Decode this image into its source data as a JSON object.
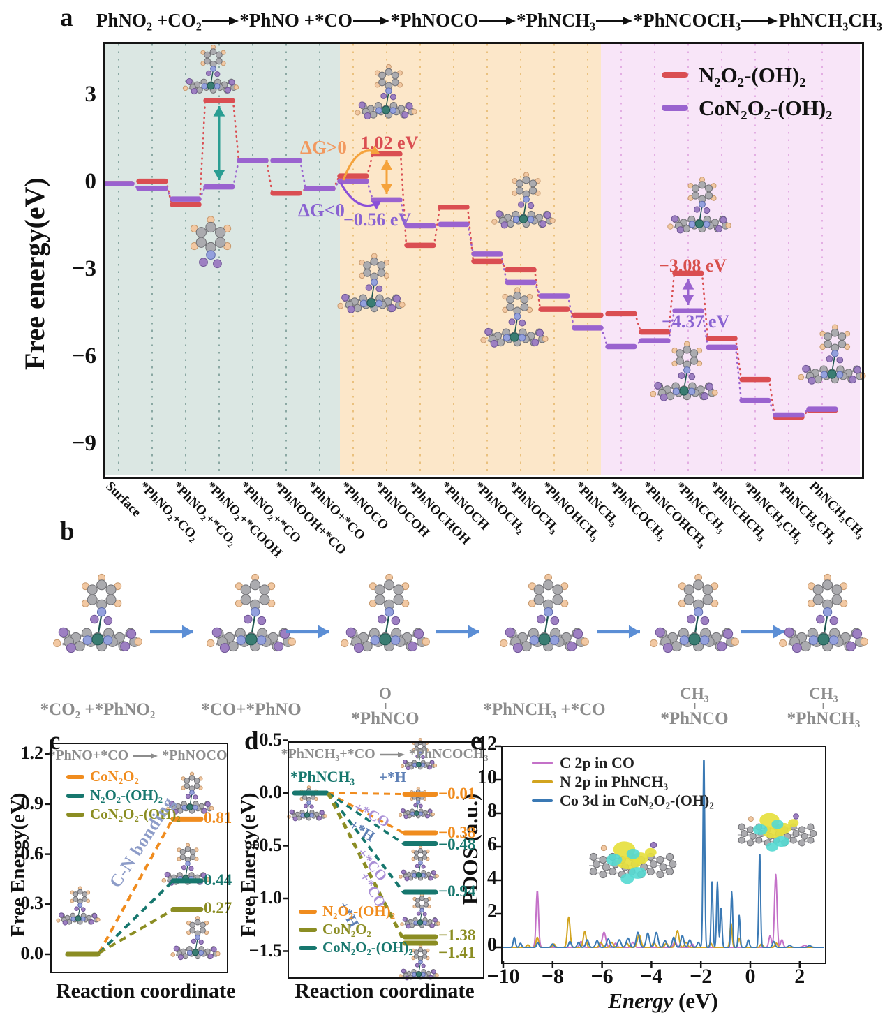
{
  "panels": {
    "a": "a",
    "b": "b",
    "c": "c",
    "d": "d",
    "e": "e"
  },
  "header": {
    "segments": [
      "PhNO₂ +CO₂",
      "*PhNO +*CO",
      "*PhNOCO",
      "*PhNCH₃",
      "*PhNCOCH₃",
      "PhNCH₃CH₃"
    ]
  },
  "panel_a": {
    "ylabel": "Free energy(eV)",
    "legend": [
      {
        "label": "N₂O₂-(OH)₂",
        "color": "#da4e52"
      },
      {
        "label": "CoN₂O₂-(OH)₂",
        "color": "#9a63cf"
      }
    ],
    "annotations": {
      "dg_pos": {
        "text": "ΔG>0",
        "color": "#f2995f"
      },
      "dg_neg": {
        "text": "ΔG<0",
        "color": "#8a63d2"
      },
      "red_peak1": {
        "text": "1.02 eV",
        "color": "#da4e52"
      },
      "purple_val1": {
        "text": "−0.56 eV",
        "color": "#8a63d2"
      },
      "red_peak2": {
        "text": "−3.08 eV",
        "color": "#d8504d"
      },
      "purple_val2": {
        "text": "−4.37 eV",
        "color": "#8a63d2"
      }
    }
  },
  "panel_b": {
    "labels": [
      {
        "main": "*CO₂ +*PhNO₂"
      },
      {
        "main": "*CO+*PhNO"
      },
      {
        "top": "O",
        "main": "*PhNCO"
      },
      {
        "main": "*PhNCH₃ +*CO"
      },
      {
        "top": "CH₃",
        "main": "*PhNCO"
      },
      {
        "top": "CH₃",
        "main": "*PhNCH₃"
      }
    ]
  },
  "panel_c": {
    "title_from": "*PhNO+*CO",
    "title_to": "*PhNOCO",
    "ylabel": "Free Energy(eV)",
    "xlabel": "Reaction coordinate",
    "annotation": "C-N bonding"
  },
  "panel_d": {
    "title_from": "*PhNCH₃+*CO",
    "title_to": "*PhNCOCH₃",
    "ylabel": "Free Energy(eV)",
    "xlabel": "Reaction coordinate",
    "start_label": "*PhNCH₃"
  },
  "panel_e": {
    "ylabel": "PDOS (a.u.)",
    "xlabel_italic": "Energy",
    "xlabel_rest": "(eV)"
  },
  "chart_data": [
    {
      "id": "a",
      "type": "line",
      "subtype": "energy-level-diagram",
      "ylabel": "Free energy(eV)",
      "ylim": [
        -10,
        4.9
      ],
      "yticks": [
        3,
        0,
        -3,
        -6,
        -9
      ],
      "categories": [
        "Surface",
        "*PhNO₂+CO₂",
        "*PhNO₂+*CO₂",
        "*PhNO₂+*COOH",
        "*PhNO₂+*CO",
        "*PhNOOH+*CO",
        "*PhNO+*CO",
        "*PhNOCO",
        "*PhNOCOH",
        "*PhNOCHOH",
        "*PhNOCH",
        "*PhNOCH₂",
        "*PhNOCH₃",
        "*PhNOHCH₃",
        "*PhNCH₃",
        "*PhNCOCH₃",
        "*PhNCOHCH₃",
        "*PhNCCH₃",
        "*PhNCHCH₃",
        "*PhNCH₂CH₃",
        "*PhNCH₃CH₃",
        "PhNCH₃CH₃"
      ],
      "series": [
        {
          "name": "N₂O₂-(OH)₂",
          "color": "#da4e52",
          "values": [
            0.0,
            0.08,
            -0.72,
            2.85,
            0.79,
            -0.33,
            -0.17,
            0.26,
            1.02,
            -2.12,
            -0.81,
            -2.67,
            -2.96,
            -4.32,
            -4.52,
            -4.47,
            -5.1,
            -3.08,
            -5.32,
            -6.73,
            -8.02,
            -7.78
          ]
        },
        {
          "name": "CoN₂O₂-(OH)₂",
          "color": "#9a63cf",
          "values": [
            0.0,
            -0.17,
            -0.53,
            -0.11,
            0.79,
            0.79,
            -0.17,
            0.08,
            -0.56,
            -1.45,
            -1.4,
            -2.42,
            -3.39,
            -3.86,
            -4.96,
            -5.6,
            -5.4,
            -4.37,
            -5.62,
            -7.45,
            -7.95,
            -7.75
          ]
        }
      ],
      "stage_bands": [
        {
          "range": "Surface → *PhNO+*CO",
          "color": "#dbe7e3"
        },
        {
          "range": "*PhNOCO → *PhNCH₃",
          "color": "#fce7c9"
        },
        {
          "range": "*PhNCOCH₃ → PhNCH₃CH₃",
          "color": "#f8e5f8"
        }
      ],
      "annotated_values": {
        "step_up_eV": 1.02,
        "step_down_eV": -0.56,
        "late_red_eV": -3.08,
        "late_purple_eV": -4.37
      }
    },
    {
      "id": "c",
      "type": "line",
      "subtype": "reaction-barrier",
      "title": "*PhNO+*CO → *PhNOCO",
      "xlabel": "Reaction coordinate",
      "ylabel": "Free Energy(eV)",
      "yticks": [
        0.0,
        0.3,
        0.6,
        0.9,
        1.2
      ],
      "ylim": [
        -0.12,
        1.3
      ],
      "series": [
        {
          "name": "CoN₂O₂",
          "color": "#f08c1e",
          "start": 0.0,
          "end": 0.81
        },
        {
          "name": "N₂O₂-(OH)₂",
          "color": "#17776e",
          "start": 0.0,
          "end": 0.44
        },
        {
          "name": "CoN₂O₂-(OH)₂",
          "color": "#8b8d23",
          "start": 0.0,
          "end": 0.27
        }
      ],
      "annotation": "C-N bonding"
    },
    {
      "id": "d",
      "type": "line",
      "subtype": "reaction-barrier",
      "title": "*PhNCH₃+*CO → *PhNCOCH₃",
      "xlabel": "Reaction coordinate",
      "ylabel": "Free Energy(eV)",
      "yticks": [
        0.5,
        0.0,
        -0.5,
        -1.0,
        -1.5
      ],
      "ylim": [
        -1.75,
        0.5
      ],
      "start_label": "*PhNCH₃",
      "start_value": 0.0,
      "paths": [
        {
          "catalyst": "N₂O₂-(OH)₂",
          "route": "+*H",
          "end": -0.01,
          "color": "#f08c1e"
        },
        {
          "catalyst": "N₂O₂-(OH)₂",
          "route": "+*CO",
          "end": -0.38,
          "color": "#f08c1e"
        },
        {
          "catalyst": "CoN₂O₂-(OH)₂",
          "route": "+*H",
          "end": -0.48,
          "color": "#17776e"
        },
        {
          "catalyst": "CoN₂O₂-(OH)₂",
          "route": "+*CO",
          "end": -0.94,
          "color": "#17776e"
        },
        {
          "catalyst": "CoN₂O₂",
          "route": "+*CO",
          "end": -1.38,
          "color": "#8b8d23"
        },
        {
          "catalyst": "CoN₂O₂",
          "route": "+*H",
          "end": -1.41,
          "color": "#8b8d23"
        }
      ],
      "legend": [
        {
          "label": "N₂O₂-(OH)₂",
          "color": "#f08c1e"
        },
        {
          "label": "CoN₂O₂",
          "color": "#8b8d23"
        },
        {
          "label": "CoN₂O₂-(OH)₂",
          "color": "#17776e"
        }
      ],
      "route_label_colors": {
        "+*H": "#5d7fb5",
        "+*CO": "#a98fd6"
      }
    },
    {
      "id": "e",
      "type": "line",
      "subtype": "pdos",
      "xlabel": "Energy (eV)",
      "ylabel": "PDOS (a.u.)",
      "xlim": [
        -10,
        3
      ],
      "ylim": [
        0,
        12
      ],
      "xticks": [
        -10,
        -8,
        -6,
        -4,
        -2,
        0,
        2
      ],
      "yticks": [
        0,
        2,
        4,
        6,
        8,
        10,
        12
      ],
      "peak_format": "[energy_eV, height_au, width_eV]",
      "series": [
        {
          "name": "C 2p in CO",
          "color": "#c471c8",
          "peaks": [
            [
              -8.62,
              3.4,
              0.07
            ],
            [
              -6.85,
              0.35,
              0.08
            ],
            [
              -5.92,
              0.9,
              0.1
            ],
            [
              -5.45,
              0.25,
              0.08
            ],
            [
              -4.75,
              0.3,
              0.08
            ],
            [
              -3.05,
              0.35,
              0.08
            ],
            [
              -2.35,
              0.2,
              0.07
            ],
            [
              0.8,
              0.7,
              0.07
            ],
            [
              1.03,
              4.35,
              0.07
            ],
            [
              1.28,
              0.45,
              0.07
            ],
            [
              2.2,
              0.12,
              0.1
            ]
          ]
        },
        {
          "name": "N 2p in PhNCH₃",
          "color": "#d2a41f",
          "peaks": [
            [
              -9.0,
              0.15,
              0.07
            ],
            [
              -8.62,
              0.6,
              0.07
            ],
            [
              -7.95,
              0.2,
              0.07
            ],
            [
              -7.35,
              1.8,
              0.08
            ],
            [
              -6.7,
              0.95,
              0.08
            ],
            [
              -6.05,
              0.3,
              0.08
            ],
            [
              -5.6,
              0.3,
              0.08
            ],
            [
              -5.0,
              0.25,
              0.08
            ],
            [
              -4.5,
              0.75,
              0.1
            ],
            [
              -3.9,
              0.3,
              0.08
            ],
            [
              -3.4,
              0.25,
              0.08
            ],
            [
              -2.95,
              1.0,
              0.09
            ],
            [
              -2.6,
              0.3,
              0.08
            ],
            [
              -1.6,
              0.25,
              0.07
            ],
            [
              -0.78,
              1.45,
              0.06
            ],
            [
              -0.45,
              0.55,
              0.06
            ],
            [
              0.45,
              0.2,
              0.07
            ],
            [
              1.05,
              0.25,
              0.07
            ]
          ]
        },
        {
          "name": "Co 3d in CoN₂O₂-(OH)₂",
          "color": "#3a79b4",
          "peaks": [
            [
              -9.55,
              0.6,
              0.06
            ],
            [
              -9.3,
              0.25,
              0.06
            ],
            [
              -8.6,
              0.3,
              0.06
            ],
            [
              -8.0,
              0.2,
              0.07
            ],
            [
              -7.3,
              0.35,
              0.07
            ],
            [
              -6.95,
              0.3,
              0.07
            ],
            [
              -6.6,
              0.45,
              0.08
            ],
            [
              -6.2,
              0.4,
              0.08
            ],
            [
              -5.75,
              0.5,
              0.09
            ],
            [
              -5.3,
              0.45,
              0.09
            ],
            [
              -4.95,
              0.55,
              0.09
            ],
            [
              -4.55,
              0.9,
              0.09
            ],
            [
              -4.15,
              0.85,
              0.09
            ],
            [
              -3.8,
              0.9,
              0.09
            ],
            [
              -3.45,
              0.4,
              0.08
            ],
            [
              -3.1,
              0.6,
              0.08
            ],
            [
              -2.75,
              0.7,
              0.08
            ],
            [
              -2.45,
              0.45,
              0.08
            ],
            [
              -2.1,
              0.3,
              0.07
            ],
            [
              -1.88,
              11.6,
              0.05
            ],
            [
              -1.55,
              3.9,
              0.05
            ],
            [
              -1.33,
              3.9,
              0.05
            ],
            [
              -1.18,
              2.4,
              0.05
            ],
            [
              -0.75,
              3.3,
              0.05
            ],
            [
              -0.45,
              1.9,
              0.05
            ],
            [
              -0.08,
              0.45,
              0.06
            ],
            [
              0.38,
              5.75,
              0.05
            ],
            [
              0.95,
              0.35,
              0.07
            ],
            [
              1.6,
              0.12,
              0.08
            ],
            [
              2.4,
              0.1,
              0.09
            ]
          ]
        }
      ]
    }
  ]
}
